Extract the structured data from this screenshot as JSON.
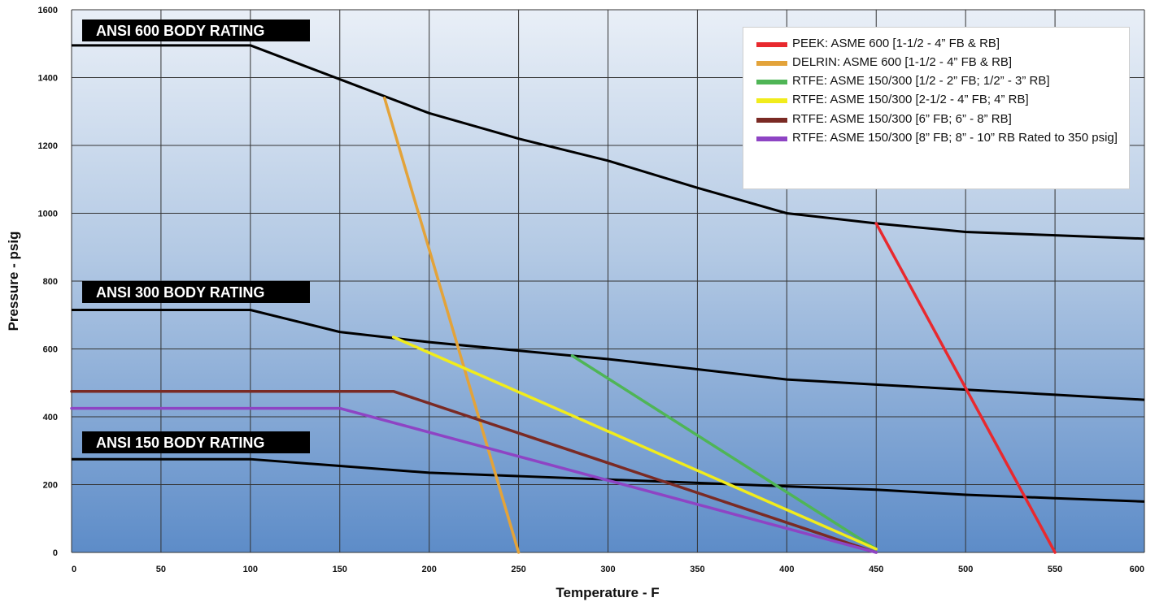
{
  "chart_data": {
    "type": "line",
    "xlabel": "Temperature - F",
    "ylabel": "Pressure - psig",
    "xlim": [
      0,
      600
    ],
    "ylim": [
      0,
      1600
    ],
    "xticks": [
      0,
      50,
      100,
      150,
      200,
      250,
      300,
      350,
      400,
      450,
      500,
      550,
      600
    ],
    "yticks": [
      0,
      200,
      400,
      600,
      800,
      1000,
      1200,
      1400,
      1600
    ],
    "grid": true,
    "legend_position": "top-right",
    "body_ratings": [
      {
        "label": "ANSI 600 BODY RATING",
        "color": "#000000",
        "x": [
          0,
          100,
          150,
          200,
          250,
          300,
          350,
          400,
          450,
          500,
          550,
          600
        ],
        "y": [
          1495,
          1495,
          1395,
          1295,
          1220,
          1155,
          1075,
          1000,
          970,
          945,
          935,
          925
        ]
      },
      {
        "label": "ANSI 300 BODY RATING",
        "color": "#000000",
        "x": [
          0,
          100,
          150,
          200,
          250,
          300,
          350,
          400,
          450,
          500,
          550,
          600
        ],
        "y": [
          715,
          715,
          650,
          620,
          595,
          570,
          540,
          510,
          495,
          480,
          465,
          450
        ]
      },
      {
        "label": "ANSI 150 BODY RATING",
        "color": "#000000",
        "x": [
          0,
          100,
          150,
          200,
          250,
          300,
          350,
          400,
          450,
          500,
          550,
          600
        ],
        "y": [
          275,
          275,
          255,
          235,
          225,
          215,
          205,
          195,
          185,
          170,
          160,
          150
        ]
      }
    ],
    "series": [
      {
        "name": "PEEK: ASME 600 [1-1/2 - 4” FB & RB]",
        "color": "#e8292e",
        "x": [
          450,
          550
        ],
        "y": [
          970,
          0
        ]
      },
      {
        "name": "DELRIN: ASME 600 [1-1/2 - 4” FB & RB]",
        "color": "#e3a33a",
        "x": [
          175,
          250
        ],
        "y": [
          1340,
          0
        ]
      },
      {
        "name": "RTFE: ASME 150/300 [1/2 - 2” FB; 1/2” - 3” RB]",
        "color": "#4fb556",
        "x": [
          280,
          450
        ],
        "y": [
          580,
          10
        ]
      },
      {
        "name": "RTFE: ASME 150/300 [2-1/2 - 4” FB; 4” RB]",
        "color": "#f1ec1c",
        "x": [
          180,
          450
        ],
        "y": [
          635,
          10
        ]
      },
      {
        "name": "RTFE: ASME 150/300 [6” FB; 6” - 8” RB]",
        "color": "#7a2a24",
        "x": [
          0,
          180,
          450
        ],
        "y": [
          475,
          475,
          0
        ]
      },
      {
        "name": "RTFE: ASME 150/300 [8” FB; 8” - 10” RB Rated to 350 psig]",
        "color": "#8e44c4",
        "x": [
          0,
          150,
          450
        ],
        "y": [
          425,
          425,
          0
        ]
      }
    ]
  }
}
